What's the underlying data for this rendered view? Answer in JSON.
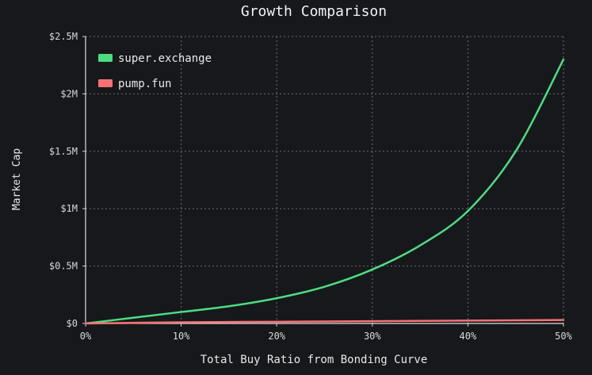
{
  "chart_data": {
    "type": "line",
    "title": "Growth Comparison",
    "xlabel": "Total Buy Ratio from Bonding Curve",
    "ylabel": "Market Cap",
    "x_ticks": [
      "0%",
      "10%",
      "20%",
      "30%",
      "40%",
      "50%"
    ],
    "y_ticks": [
      "$0",
      "$0.5M",
      "$1M",
      "$1.5M",
      "$2M",
      "$2.5M"
    ],
    "xlim": [
      0,
      50
    ],
    "ylim": [
      0,
      2.5
    ],
    "y_unit": "$M",
    "grid": true,
    "grid_style": "dotted",
    "legend_position": "top-left",
    "series": [
      {
        "name": "super.exchange",
        "color": "#4ade80",
        "x": [
          0,
          5,
          10,
          15,
          20,
          25,
          30,
          35,
          40,
          45,
          50
        ],
        "y": [
          0,
          0.05,
          0.1,
          0.15,
          0.22,
          0.32,
          0.47,
          0.68,
          0.98,
          1.5,
          2.3
        ]
      },
      {
        "name": "pump.fun",
        "color": "#f87171",
        "x": [
          0,
          10,
          20,
          30,
          40,
          50
        ],
        "y": [
          0,
          0.01,
          0.015,
          0.02,
          0.025,
          0.03
        ]
      }
    ]
  }
}
